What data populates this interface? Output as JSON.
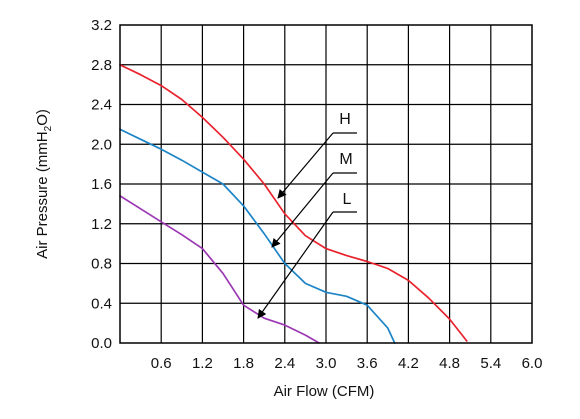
{
  "chart_data": {
    "type": "line",
    "xlabel": "Air Flow (CFM)",
    "ylabel": "Air Pressure (mmH2O)",
    "xlim": [
      0,
      6.0
    ],
    "ylim": [
      0,
      3.2
    ],
    "x_ticks": [
      "0.6",
      "1.2",
      "1.8",
      "2.4",
      "3.0",
      "3.6",
      "4.2",
      "4.8",
      "5.4",
      "6.0"
    ],
    "y_ticks": [
      "3.2",
      "2.8",
      "2.4",
      "2.0",
      "1.6",
      "1.2",
      "0.8",
      "0.4",
      "0.0"
    ],
    "grid": true,
    "series": [
      {
        "name": "H",
        "color": "#e8232d",
        "x": [
          0.0,
          0.3,
          0.6,
          0.9,
          1.2,
          1.5,
          1.8,
          2.1,
          2.4,
          2.7,
          3.0,
          3.3,
          3.6,
          3.9,
          4.2,
          4.5,
          4.8,
          5.05
        ],
        "y": [
          2.8,
          2.7,
          2.59,
          2.45,
          2.27,
          2.07,
          1.85,
          1.6,
          1.3,
          1.08,
          0.95,
          0.88,
          0.82,
          0.75,
          0.63,
          0.45,
          0.24,
          0.02
        ]
      },
      {
        "name": "M",
        "color": "#1c84c6",
        "x": [
          0.0,
          0.3,
          0.6,
          0.9,
          1.2,
          1.5,
          1.8,
          2.1,
          2.4,
          2.7,
          3.0,
          3.3,
          3.6,
          3.9,
          4.0
        ],
        "y": [
          2.15,
          2.05,
          1.95,
          1.84,
          1.72,
          1.6,
          1.38,
          1.1,
          0.8,
          0.6,
          0.51,
          0.47,
          0.38,
          0.15,
          0.0
        ]
      },
      {
        "name": "L",
        "color": "#9b37b3",
        "x": [
          0.0,
          0.3,
          0.6,
          0.9,
          1.2,
          1.5,
          1.8,
          2.1,
          2.4,
          2.7,
          2.9
        ],
        "y": [
          1.48,
          1.35,
          1.22,
          1.09,
          0.95,
          0.7,
          0.38,
          0.25,
          0.18,
          0.08,
          0.0
        ]
      }
    ],
    "annotations": [
      {
        "text": "H",
        "series": "H"
      },
      {
        "text": "M",
        "series": "M"
      },
      {
        "text": "L",
        "series": "L"
      }
    ]
  }
}
